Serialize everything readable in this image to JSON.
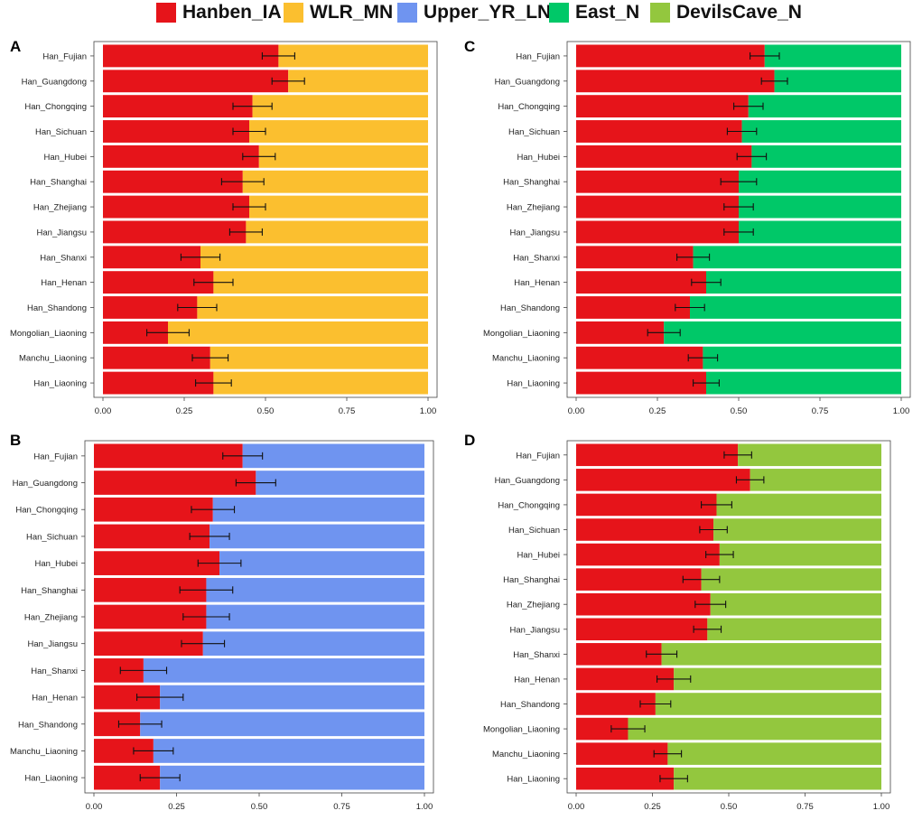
{
  "legend": [
    {
      "label": "Hanben_IA",
      "color": "#e6141a"
    },
    {
      "label": "WLR_MN",
      "color": "#fbbf2f"
    },
    {
      "label": "Upper_YR_LN",
      "color": "#6f94f0"
    },
    {
      "label": "East_N",
      "color": "#00c868"
    },
    {
      "label": "DevilsCave_N",
      "color": "#93c73e"
    }
  ],
  "chart_data": [
    {
      "panel": "A",
      "type": "bar",
      "orientation": "horizontal",
      "stacked": true,
      "categories": [
        "Han_Fujian",
        "Han_Guangdong",
        "Han_Chongqing",
        "Han_Sichuan",
        "Han_Hubei",
        "Han_Shanghai",
        "Han_Zhejiang",
        "Han_Jiangsu",
        "Han_Shanxi",
        "Han_Henan",
        "Han_Shandong",
        "Mongolian_Liaoning",
        "Manchu_Liaoning",
        "Han_Liaoning"
      ],
      "series": [
        {
          "name": "Hanben_IA",
          "color": "#e6141a",
          "values": [
            0.54,
            0.57,
            0.46,
            0.45,
            0.48,
            0.43,
            0.45,
            0.44,
            0.3,
            0.34,
            0.29,
            0.2,
            0.33,
            0.34
          ]
        },
        {
          "name": "WLR_MN",
          "color": "#fbbf2f",
          "values": [
            0.46,
            0.43,
            0.54,
            0.55,
            0.52,
            0.57,
            0.55,
            0.56,
            0.7,
            0.66,
            0.71,
            0.8,
            0.67,
            0.66
          ]
        }
      ],
      "error": [
        0.05,
        0.05,
        0.06,
        0.05,
        0.05,
        0.065,
        0.05,
        0.05,
        0.06,
        0.06,
        0.06,
        0.065,
        0.055,
        0.055
      ],
      "xticks": [
        "0.00",
        "0.25",
        "0.50",
        "0.75",
        "1.00"
      ],
      "xlim": [
        0,
        1
      ]
    },
    {
      "panel": "B",
      "type": "bar",
      "orientation": "horizontal",
      "stacked": true,
      "categories": [
        "Han_Fujian",
        "Han_Guangdong",
        "Han_Chongqing",
        "Han_Sichuan",
        "Han_Hubei",
        "Han_Shanghai",
        "Han_Zhejiang",
        "Han_Jiangsu",
        "Han_Shanxi",
        "Han_Henan",
        "Han_Shandong",
        "Manchu_Liaoning",
        "Han_Liaoning"
      ],
      "series": [
        {
          "name": "Hanben_IA",
          "color": "#e6141a",
          "values": [
            0.45,
            0.49,
            0.36,
            0.35,
            0.38,
            0.34,
            0.34,
            0.33,
            0.15,
            0.2,
            0.14,
            0.18,
            0.2
          ]
        },
        {
          "name": "Upper_YR_LN",
          "color": "#6f94f0",
          "values": [
            0.55,
            0.51,
            0.64,
            0.65,
            0.62,
            0.66,
            0.66,
            0.67,
            0.85,
            0.8,
            0.86,
            0.82,
            0.8
          ]
        }
      ],
      "error": [
        0.06,
        0.06,
        0.065,
        0.06,
        0.065,
        0.08,
        0.07,
        0.065,
        0.07,
        0.07,
        0.065,
        0.06,
        0.06
      ],
      "xticks": [
        "0.00",
        "0.25",
        "0.50",
        "0.75",
        "1.00"
      ],
      "xlim": [
        0,
        1
      ]
    },
    {
      "panel": "C",
      "type": "bar",
      "orientation": "horizontal",
      "stacked": true,
      "categories": [
        "Han_Fujian",
        "Han_Guangdong",
        "Han_Chongqing",
        "Han_Sichuan",
        "Han_Hubei",
        "Han_Shanghai",
        "Han_Zhejiang",
        "Han_Jiangsu",
        "Han_Shanxi",
        "Han_Henan",
        "Han_Shandong",
        "Mongolian_Liaoning",
        "Manchu_Liaoning",
        "Han_Liaoning"
      ],
      "series": [
        {
          "name": "Hanben_IA",
          "color": "#e6141a",
          "values": [
            0.58,
            0.61,
            0.53,
            0.51,
            0.54,
            0.5,
            0.5,
            0.5,
            0.36,
            0.4,
            0.35,
            0.27,
            0.39,
            0.4
          ]
        },
        {
          "name": "East_N",
          "color": "#00c868",
          "values": [
            0.42,
            0.39,
            0.47,
            0.49,
            0.46,
            0.5,
            0.5,
            0.5,
            0.64,
            0.6,
            0.65,
            0.73,
            0.61,
            0.6
          ]
        }
      ],
      "error": [
        0.045,
        0.04,
        0.045,
        0.045,
        0.045,
        0.055,
        0.045,
        0.045,
        0.05,
        0.045,
        0.045,
        0.05,
        0.045,
        0.04
      ],
      "xticks": [
        "0.00",
        "0.25",
        "0.50",
        "0.75",
        "1.00"
      ],
      "xlim": [
        0,
        1
      ]
    },
    {
      "panel": "D",
      "type": "bar",
      "orientation": "horizontal",
      "stacked": true,
      "categories": [
        "Han_Fujian",
        "Han_Guangdong",
        "Han_Chongqing",
        "Han_Sichuan",
        "Han_Hubei",
        "Han_Shanghai",
        "Han_Zhejiang",
        "Han_Jiangsu",
        "Han_Shanxi",
        "Han_Henan",
        "Han_Shandong",
        "Mongolian_Liaoning",
        "Manchu_Liaoning",
        "Han_Liaoning"
      ],
      "series": [
        {
          "name": "Hanben_IA",
          "color": "#e6141a",
          "values": [
            0.53,
            0.57,
            0.46,
            0.45,
            0.47,
            0.41,
            0.44,
            0.43,
            0.28,
            0.32,
            0.26,
            0.17,
            0.3,
            0.32
          ]
        },
        {
          "name": "DevilsCave_N",
          "color": "#93c73e",
          "values": [
            0.47,
            0.43,
            0.54,
            0.55,
            0.53,
            0.59,
            0.56,
            0.57,
            0.72,
            0.68,
            0.74,
            0.83,
            0.7,
            0.68
          ]
        }
      ],
      "error": [
        0.045,
        0.045,
        0.05,
        0.045,
        0.045,
        0.06,
        0.05,
        0.045,
        0.05,
        0.055,
        0.05,
        0.055,
        0.045,
        0.045
      ],
      "xticks": [
        "0.00",
        "0.25",
        "0.50",
        "0.75",
        "1.00"
      ],
      "xlim": [
        0,
        1
      ]
    }
  ]
}
